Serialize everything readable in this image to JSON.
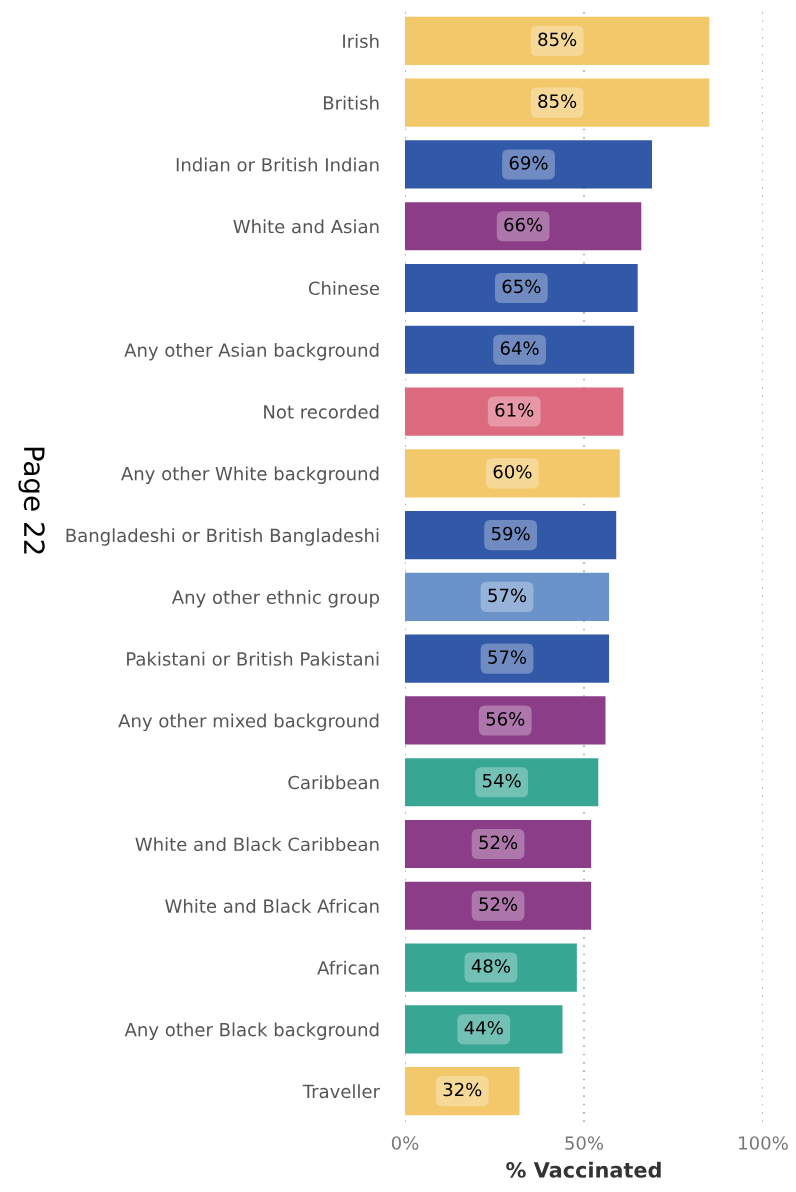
{
  "chart_data": {
    "type": "bar",
    "orientation": "horizontal",
    "xlabel": "% Vaccinated",
    "categories": [
      "Irish",
      "British",
      "Indian or British Indian",
      "White and Asian",
      "Chinese",
      "Any other Asian background",
      "Not recorded",
      "Any other White background",
      "Bangladeshi or British Bangladeshi",
      "Any other ethnic group",
      "Pakistani or British Pakistani",
      "Any other mixed background",
      "Caribbean",
      "White and Black Caribbean",
      "White and Black African",
      "African",
      "Any other Black background",
      "Traveller"
    ],
    "values": [
      85,
      85,
      69,
      66,
      65,
      64,
      61,
      60,
      59,
      57,
      57,
      56,
      54,
      52,
      52,
      48,
      44,
      32
    ],
    "value_labels": [
      "85%",
      "85%",
      "69%",
      "66%",
      "65%",
      "64%",
      "61%",
      "60%",
      "59%",
      "57%",
      "57%",
      "56%",
      "54%",
      "52%",
      "52%",
      "48%",
      "44%",
      "32%"
    ],
    "colors": [
      "#f2c86b",
      "#f2c86b",
      "#3259a8",
      "#8b3d88",
      "#3259a8",
      "#3259a8",
      "#dd6b7f",
      "#f2c86b",
      "#3259a8",
      "#6a93c9",
      "#3259a8",
      "#8b3d88",
      "#37a794",
      "#8b3d88",
      "#8b3d88",
      "#37a794",
      "#37a794",
      "#f2c86b"
    ],
    "xlim": [
      0,
      100
    ],
    "xticks": [
      {
        "value": 0,
        "label": "0%"
      },
      {
        "value": 50,
        "label": "50%"
      },
      {
        "value": 100,
        "label": "100%"
      }
    ],
    "grid": "x",
    "annotations": [
      "Page 22"
    ]
  }
}
